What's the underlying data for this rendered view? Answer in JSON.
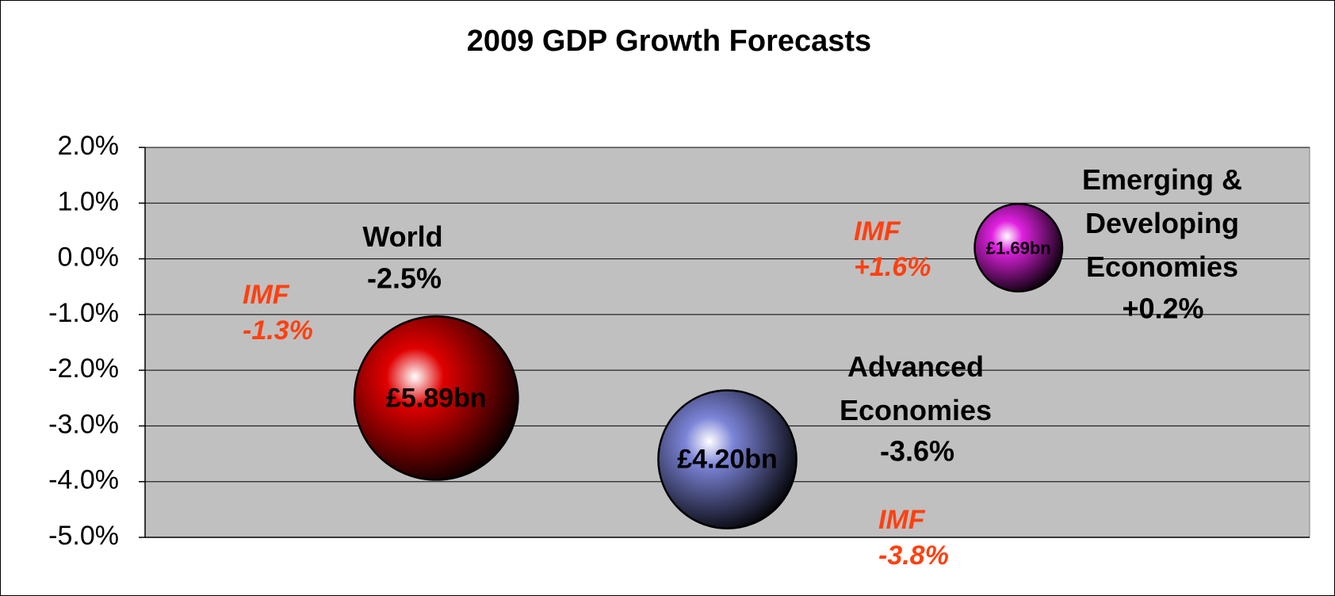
{
  "chart_data": {
    "type": "bubble",
    "title": "2009 GDP Growth Forecasts",
    "xlim": [
      0,
      4
    ],
    "ylim": [
      -5,
      2
    ],
    "yticks": [
      {
        "value": 2,
        "label": "2.0%"
      },
      {
        "value": 1,
        "label": "1.0%"
      },
      {
        "value": 0,
        "label": "0.0%"
      },
      {
        "value": -1,
        "label": "-1.0%"
      },
      {
        "value": -2,
        "label": "-2.0%"
      },
      {
        "value": -3,
        "label": "-3.0%"
      },
      {
        "value": -4,
        "label": "-4.0%"
      },
      {
        "value": -5,
        "label": "-5.0%"
      }
    ],
    "grid": true,
    "imf_text": "IMF",
    "series": [
      {
        "name": "World",
        "color": "#e00000",
        "x": 1,
        "value": -2.5,
        "value_label": "-2.5%",
        "size": 5.89,
        "size_label": "£5.89bn",
        "imf": -1.3,
        "imf_label": "-1.3%"
      },
      {
        "name": "Advanced Economies",
        "color": "#7c84d8",
        "x": 2,
        "value": -3.6,
        "value_label": "-3.6%",
        "size": 4.2,
        "size_label": "£4.20bn",
        "imf": -3.8,
        "imf_label": "-3.8%"
      },
      {
        "name": "Emerging & Developing Economies",
        "color": "#e020e0",
        "x": 3,
        "value": 0.2,
        "value_label": "+0.2%",
        "size": 1.69,
        "size_label": "£1.69bn",
        "imf": 1.6,
        "imf_label": "+1.6%"
      }
    ]
  }
}
